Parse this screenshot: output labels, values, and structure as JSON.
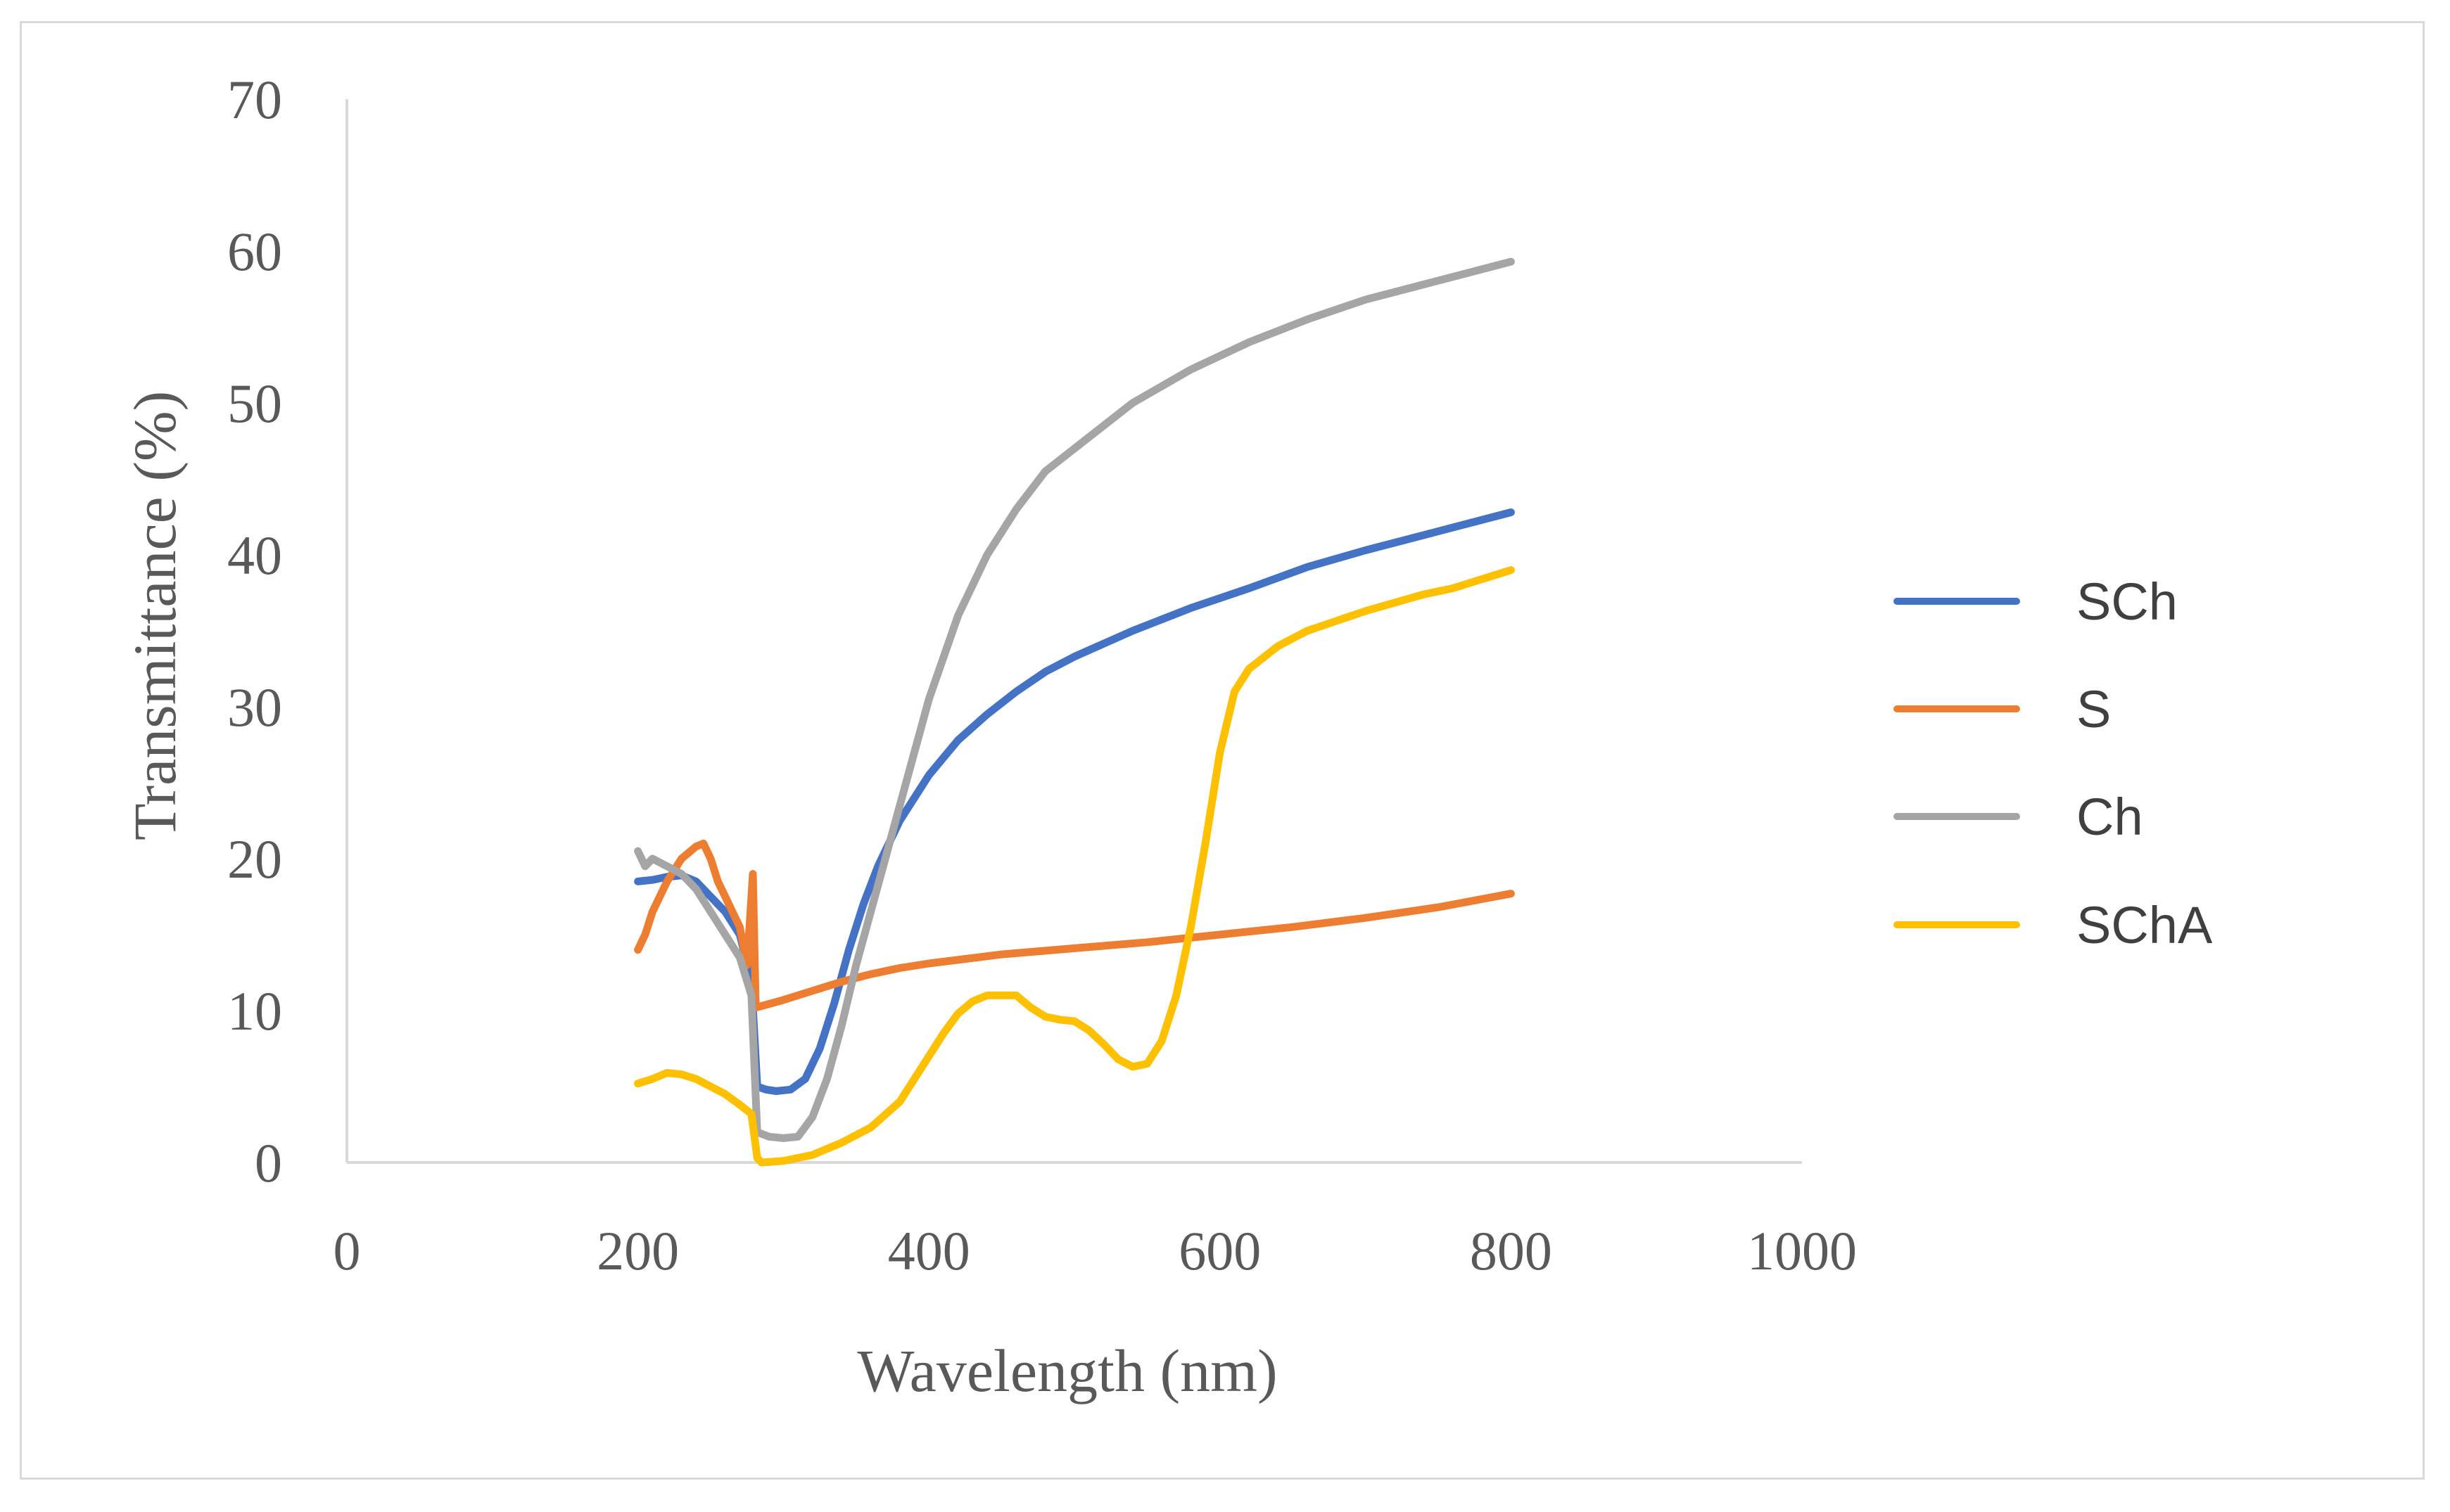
{
  "chart_data": {
    "type": "line",
    "title": "",
    "xlabel": "Wavelength (nm)",
    "ylabel": "Transmittance (%)",
    "xlim": [
      0,
      1000
    ],
    "ylim": [
      0,
      70
    ],
    "x_ticks": [
      "0",
      "200",
      "400",
      "600",
      "800",
      "1000"
    ],
    "y_ticks": [
      "0",
      "10",
      "20",
      "30",
      "40",
      "50",
      "60",
      "70"
    ],
    "grid": false,
    "legend_position": "right",
    "series": [
      {
        "name": "SCh",
        "color": "#4472c4",
        "x": [
          200,
          210,
          220,
          230,
          240,
          250,
          260,
          270,
          278,
          282,
          288,
          295,
          305,
          315,
          325,
          335,
          345,
          355,
          365,
          380,
          400,
          420,
          440,
          460,
          480,
          500,
          540,
          580,
          620,
          660,
          700,
          740,
          760,
          800
        ],
        "y": [
          18.5,
          18.6,
          18.8,
          18.9,
          18.5,
          17.5,
          16.5,
          15.0,
          12.0,
          5.0,
          4.8,
          4.7,
          4.8,
          5.5,
          7.5,
          10.5,
          14.0,
          17.0,
          19.5,
          22.5,
          25.5,
          27.8,
          29.5,
          31.0,
          32.3,
          33.3,
          35.0,
          36.5,
          37.8,
          39.2,
          40.3,
          41.3,
          41.8,
          42.8
        ]
      },
      {
        "name": "S",
        "color": "#ed7d31",
        "x": [
          200,
          205,
          210,
          220,
          230,
          240,
          245,
          250,
          255,
          260,
          265,
          270,
          275,
          279,
          281,
          285,
          300,
          320,
          340,
          360,
          380,
          400,
          450,
          500,
          550,
          600,
          650,
          700,
          750,
          800
        ],
        "y": [
          14.0,
          15.0,
          16.5,
          18.5,
          20.0,
          20.8,
          21.0,
          20.0,
          18.5,
          17.5,
          16.5,
          15.5,
          13.0,
          19.0,
          10.2,
          10.3,
          10.7,
          11.3,
          11.9,
          12.4,
          12.8,
          13.1,
          13.7,
          14.1,
          14.5,
          15.0,
          15.5,
          16.1,
          16.8,
          17.7
        ]
      },
      {
        "name": "Ch",
        "color": "#a5a5a5",
        "x": [
          200,
          205,
          210,
          220,
          230,
          240,
          250,
          260,
          270,
          278,
          282,
          290,
          300,
          310,
          320,
          330,
          340,
          350,
          360,
          370,
          380,
          390,
          400,
          420,
          440,
          460,
          480,
          500,
          540,
          580,
          620,
          660,
          700,
          740,
          760,
          800
        ],
        "y": [
          20.5,
          19.5,
          20.0,
          19.5,
          19.0,
          18.0,
          16.5,
          15.0,
          13.5,
          11.0,
          2.0,
          1.7,
          1.6,
          1.7,
          3.0,
          5.5,
          9.0,
          13.0,
          16.5,
          20.0,
          23.5,
          27.0,
          30.5,
          36.0,
          40.0,
          43.0,
          45.5,
          47.0,
          50.0,
          52.2,
          54.0,
          55.5,
          56.8,
          57.8,
          58.3,
          59.3
        ]
      },
      {
        "name": "SChA",
        "color": "#ffc000",
        "x": [
          200,
          210,
          220,
          230,
          240,
          250,
          260,
          270,
          278,
          282,
          285,
          300,
          320,
          340,
          360,
          380,
          400,
          410,
          420,
          430,
          440,
          450,
          460,
          470,
          480,
          490,
          500,
          510,
          520,
          530,
          540,
          550,
          560,
          570,
          580,
          590,
          600,
          610,
          620,
          640,
          660,
          700,
          740,
          760,
          800
        ],
        "y": [
          5.2,
          5.5,
          5.9,
          5.8,
          5.5,
          5.0,
          4.5,
          3.8,
          3.2,
          0.3,
          0.0,
          0.1,
          0.5,
          1.3,
          2.3,
          4.0,
          7.0,
          8.5,
          9.8,
          10.6,
          11.0,
          11.0,
          11.0,
          10.2,
          9.6,
          9.4,
          9.3,
          8.7,
          7.8,
          6.8,
          6.3,
          6.5,
          8.0,
          11.0,
          15.5,
          21.0,
          27.0,
          31.0,
          32.5,
          34.0,
          35.0,
          36.3,
          37.4,
          37.8,
          39.0
        ]
      }
    ]
  }
}
